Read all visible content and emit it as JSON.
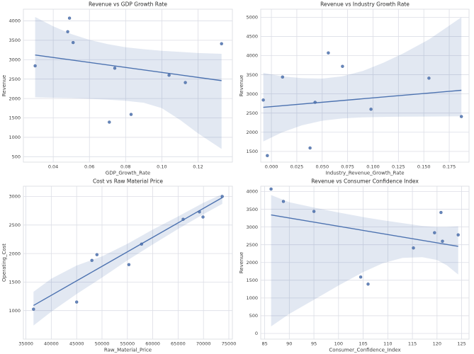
{
  "figure": {
    "background": "#ffffff",
    "accent_color": "#4c72b0",
    "point_edge_color": "#36548c",
    "band_color": "#4c72b0",
    "band_opacity": 0.16,
    "grid_color": "#dcdee6",
    "spine_color": "#d7d9e0",
    "tick_text_color": "#3d3d3d",
    "title_text_color": "#2b2b2b"
  },
  "chart_data": [
    {
      "type": "scatter",
      "title": "Revenue vs GDP Growth Rate",
      "xlabel": "GDP_Growth_Rate",
      "ylabel": "Revenue",
      "grid": true,
      "legend": null,
      "xlim": [
        0.0235,
        0.139
      ],
      "ylim": [
        360,
        4300
      ],
      "xticks": [
        0.04,
        0.06,
        0.08,
        0.1,
        0.12
      ],
      "xtick_labels": [
        "0.04",
        "0.06",
        "0.08",
        "0.10",
        "0.12"
      ],
      "yticks": [
        500,
        1000,
        1500,
        2000,
        2500,
        3000,
        3500,
        4000
      ],
      "ytick_labels": [
        "500",
        "1000",
        "1500",
        "2000",
        "2500",
        "3000",
        "3500",
        "4000"
      ],
      "points": [
        [
          0.03,
          2840
        ],
        [
          0.048,
          3720
        ],
        [
          0.049,
          4070
        ],
        [
          0.051,
          3440
        ],
        [
          0.071,
          1390
        ],
        [
          0.074,
          2780
        ],
        [
          0.083,
          1590
        ],
        [
          0.104,
          2600
        ],
        [
          0.113,
          2410
        ],
        [
          0.133,
          3410
        ]
      ],
      "regression": {
        "x": [
          0.03,
          0.133
        ],
        "y": [
          3120,
          2460
        ]
      },
      "ci_band": {
        "x": [
          0.03,
          0.04,
          0.05,
          0.06,
          0.07,
          0.08,
          0.09,
          0.1,
          0.11,
          0.12,
          0.133
        ],
        "upper": [
          4100,
          3860,
          3660,
          3510,
          3400,
          3320,
          3270,
          3230,
          3200,
          3170,
          3150
        ],
        "lower": [
          2030,
          2020,
          2010,
          1990,
          1970,
          1940,
          1890,
          1750,
          1450,
          1100,
          700
        ]
      }
    },
    {
      "type": "scatter",
      "title": "Revenue vs Industry Growth Rate",
      "xlabel": "Industry_Revenue_Growth_Rate",
      "ylabel": "Revenue",
      "grid": true,
      "legend": null,
      "xlim": [
        -0.0105,
        0.1945
      ],
      "ylim": [
        1220,
        5210
      ],
      "xticks": [
        0.0,
        0.025,
        0.05,
        0.075,
        0.1,
        0.125,
        0.15,
        0.175
      ],
      "xtick_labels": [
        "0.000",
        "0.025",
        "0.050",
        "0.075",
        "0.100",
        "0.125",
        "0.150",
        "0.175"
      ],
      "yticks": [
        1500,
        2000,
        2500,
        3000,
        3500,
        4000,
        4500,
        5000
      ],
      "ytick_labels": [
        "1500",
        "2000",
        "2500",
        "3000",
        "3500",
        "4000",
        "4500",
        "5000"
      ],
      "points": [
        [
          -0.008,
          2840
        ],
        [
          -0.004,
          1390
        ],
        [
          0.011,
          3440
        ],
        [
          0.038,
          1590
        ],
        [
          0.043,
          2780
        ],
        [
          0.056,
          4070
        ],
        [
          0.07,
          3720
        ],
        [
          0.098,
          2600
        ],
        [
          0.155,
          3410
        ],
        [
          0.187,
          2410
        ]
      ],
      "regression": {
        "x": [
          -0.008,
          0.187
        ],
        "y": [
          2650,
          3095
        ]
      },
      "ci_band": {
        "x": [
          -0.008,
          0.01,
          0.03,
          0.05,
          0.07,
          0.09,
          0.11,
          0.13,
          0.155,
          0.187
        ],
        "upper": [
          3550,
          3460,
          3410,
          3400,
          3460,
          3600,
          3810,
          4060,
          4420,
          5000
        ],
        "lower": [
          1760,
          1990,
          2180,
          2300,
          2360,
          2390,
          2400,
          2405,
          2410,
          2415
        ]
      }
    },
    {
      "type": "scatter",
      "title": "Cost vs Raw Material Price",
      "xlabel": "Raw_Material_Price",
      "ylabel": "Operating_Cost",
      "grid": true,
      "legend": null,
      "xlim": [
        34500,
        75700
      ],
      "ylim": [
        500,
        3180
      ],
      "xticks": [
        35000,
        40000,
        45000,
        50000,
        55000,
        60000,
        65000,
        70000,
        75000
      ],
      "xtick_labels": [
        "35000",
        "40000",
        "45000",
        "50000",
        "55000",
        "60000",
        "65000",
        "70000",
        "75000"
      ],
      "yticks": [
        1000,
        1500,
        2000,
        2500,
        3000
      ],
      "ytick_labels": [
        "1000",
        "1500",
        "2000",
        "2500",
        "3000"
      ],
      "points": [
        [
          36500,
          1025
        ],
        [
          45000,
          1150
        ],
        [
          48000,
          1880
        ],
        [
          49000,
          1980
        ],
        [
          55300,
          1805
        ],
        [
          57800,
          2165
        ],
        [
          66000,
          2600
        ],
        [
          69200,
          2730
        ],
        [
          69900,
          2640
        ],
        [
          73700,
          3000
        ]
      ],
      "regression": {
        "x": [
          36500,
          73700
        ],
        "y": [
          1090,
          2980
        ]
      },
      "ci_band": {
        "x": [
          36500,
          40000,
          45000,
          50000,
          55000,
          60000,
          65000,
          70000,
          73700
        ],
        "upper": [
          1330,
          1560,
          1790,
          1950,
          2170,
          2420,
          2650,
          2890,
          3040
        ],
        "lower": [
          740,
          980,
          1290,
          1580,
          1880,
          2160,
          2430,
          2690,
          2870
        ]
      }
    },
    {
      "type": "scatter",
      "title": "Revenue vs Consumer Confidence Index",
      "xlabel": "Consumer_Confidence_Index",
      "ylabel": "Revenue",
      "grid": true,
      "legend": null,
      "xlim": [
        84.2,
        126.5
      ],
      "ylim": [
        -160,
        4150
      ],
      "xticks": [
        85,
        90,
        95,
        100,
        105,
        110,
        115,
        120,
        125
      ],
      "xtick_labels": [
        "85",
        "90",
        "95",
        "100",
        "105",
        "110",
        "115",
        "120",
        "125"
      ],
      "yticks": [
        0,
        500,
        1000,
        1500,
        2000,
        2500,
        3000,
        3500,
        4000
      ],
      "ytick_labels": [
        "0",
        "500",
        "1000",
        "1500",
        "2000",
        "2500",
        "3000",
        "3500",
        "4000"
      ],
      "points": [
        [
          86.3,
          4070
        ],
        [
          88.8,
          3720
        ],
        [
          95.0,
          3440
        ],
        [
          104.5,
          1590
        ],
        [
          106.0,
          1390
        ],
        [
          115.2,
          2410
        ],
        [
          119.5,
          2840
        ],
        [
          120.8,
          3410
        ],
        [
          121.1,
          2600
        ],
        [
          124.3,
          2780
        ]
      ],
      "regression": {
        "x": [
          86.3,
          124.3
        ],
        "y": [
          3340,
          2455
        ]
      },
      "ci_band": {
        "x": [
          86.3,
          90,
          95,
          100,
          105,
          109,
          113,
          117,
          120,
          122,
          124.3
        ],
        "upper": [
          3900,
          3700,
          3550,
          3410,
          3280,
          3190,
          3110,
          3030,
          3000,
          3000,
          3020
        ],
        "lower": [
          200,
          550,
          950,
          1350,
          1730,
          1980,
          2130,
          2150,
          2070,
          1920,
          1660
        ]
      }
    }
  ]
}
